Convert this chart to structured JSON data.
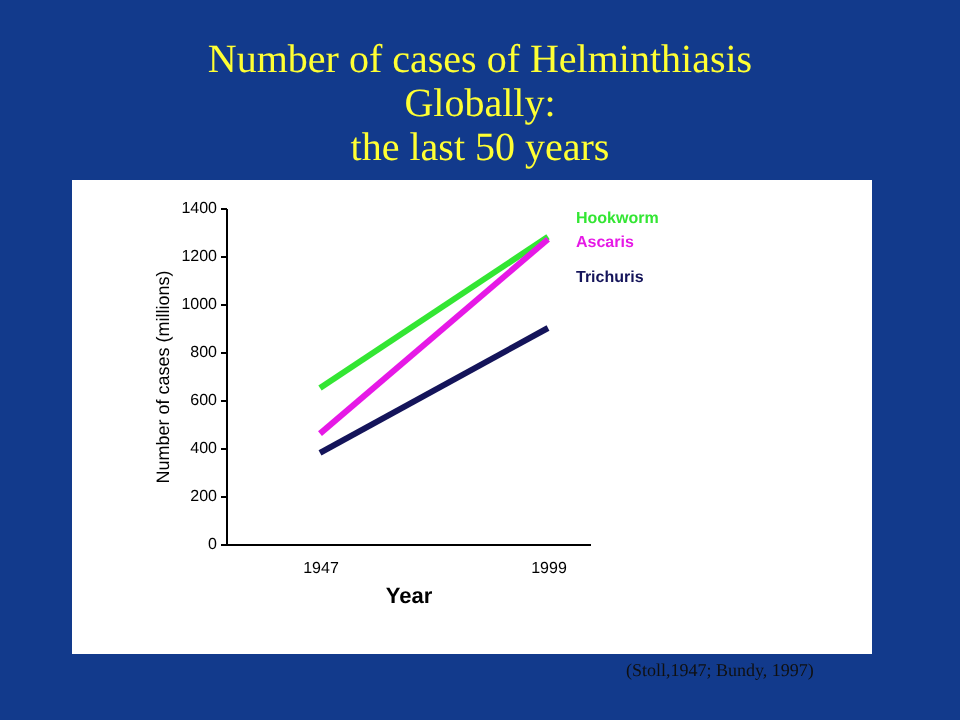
{
  "chart_data": {
    "type": "line",
    "title": "Number of cases of Helminthiasis\nGlobally:\nthe last 50 years",
    "xlabel": "Year",
    "ylabel": "Number of cases (millions)",
    "categories": [
      "1947",
      "1999"
    ],
    "series": [
      {
        "name": "Hookworm",
        "color": "#33e633",
        "values": [
          650,
          1280
        ]
      },
      {
        "name": "Ascaris",
        "color": "#e619e6",
        "values": [
          460,
          1270
        ]
      },
      {
        "name": "Trichuris",
        "color": "#14145a",
        "values": [
          380,
          900
        ]
      }
    ],
    "ylim": [
      0,
      1400
    ],
    "yticks": [
      0,
      200,
      400,
      600,
      800,
      1000,
      1200,
      1400
    ],
    "grid": false,
    "legend": false,
    "marker": "none",
    "line_style": "solid",
    "annotations": [
      "(Stoll,1947; Bundy, 1997)"
    ]
  }
}
